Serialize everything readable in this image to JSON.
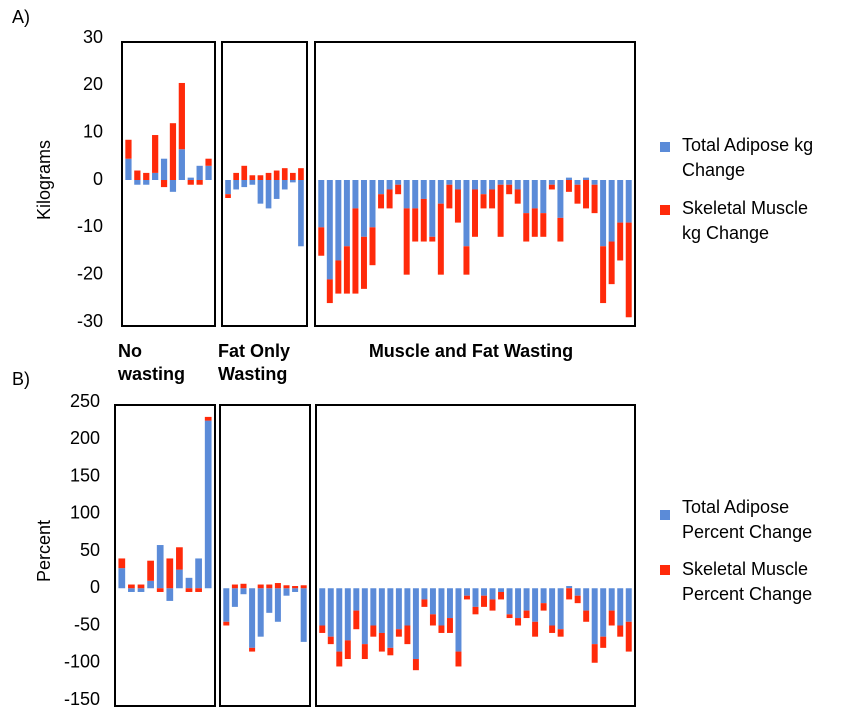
{
  "chart_data": [
    {
      "type": "bar",
      "stacked": true,
      "panel_label": "A)",
      "ylabel": "Kilograms",
      "ylim": [
        -30,
        30
      ],
      "yticks": [
        -30,
        -20,
        -10,
        0,
        10,
        20,
        30
      ],
      "series": [
        {
          "name": "Total Adipose kg Change",
          "color": "#5b8bd8"
        },
        {
          "name": "Skeletal Muscle kg Change",
          "color": "#ff2a0a"
        }
      ],
      "groups": [
        {
          "label": "No wasting",
          "series": [
            {
              "values": [
                4.5,
                -1,
                -1,
                1.5,
                4.5,
                -2.5,
                6.5,
                0.5,
                3,
                3
              ]
            },
            {
              "values": [
                4,
                2,
                1.5,
                8,
                -1.5,
                12,
                14,
                -1,
                -1,
                1.5
              ]
            }
          ]
        },
        {
          "label": "Fat Only Wasting",
          "series": [
            {
              "values": [
                -3,
                -2,
                -1.5,
                -1,
                -5,
                -6,
                -4,
                -2,
                -0.5,
                -14
              ]
            },
            {
              "values": [
                -0.8,
                1.5,
                3,
                1,
                1,
                1.5,
                2,
                2.5,
                1.5,
                2.5
              ]
            }
          ]
        },
        {
          "label": "Muscle and Fat Wasting",
          "series": [
            {
              "values": [
                -10,
                -21,
                -17,
                -14,
                -6,
                -12,
                -10,
                -3,
                -2,
                -1,
                -6,
                -6,
                -4,
                -12,
                -5,
                -1,
                -2,
                -14,
                -2,
                -3,
                -2,
                -1,
                -1,
                -2,
                -7,
                -6,
                -7,
                -1,
                -8,
                0.5,
                -1,
                0.5,
                -1,
                -14,
                -13,
                -9,
                -9
              ]
            },
            {
              "values": [
                -6,
                -5,
                -7,
                -10,
                -18,
                -11,
                -8,
                -3,
                -4,
                -2,
                -14,
                -7,
                -9,
                -1,
                -15,
                -5,
                -7,
                -6,
                -10,
                -3,
                -4,
                -11,
                -2,
                -3,
                -6,
                -6,
                -5,
                -1,
                -5,
                -2.5,
                -4,
                -6,
                -6,
                -12,
                -9,
                -8,
                -20
              ]
            }
          ]
        }
      ]
    },
    {
      "type": "bar",
      "stacked": true,
      "panel_label": "B)",
      "ylabel": "Percent",
      "ylim": [
        -150,
        250
      ],
      "yticks": [
        -150,
        -100,
        -50,
        0,
        50,
        100,
        150,
        200,
        250
      ],
      "series": [
        {
          "name": "Total Adipose Percent Change",
          "color": "#5b8bd8"
        },
        {
          "name": "Skeletal Muscle Percent Change",
          "color": "#ff2a0a"
        }
      ],
      "groups": [
        {
          "series": [
            {
              "values": [
                27,
                -5,
                -5,
                10,
                58,
                -17,
                25,
                14,
                40,
                225
              ]
            },
            {
              "values": [
                13,
                5,
                5,
                27,
                -5,
                40,
                30,
                -5,
                -5,
                5
              ]
            }
          ]
        },
        {
          "series": [
            {
              "values": [
                -45,
                -25,
                -8,
                -80,
                -65,
                -33,
                -45,
                -10,
                -5,
                -72
              ]
            },
            {
              "values": [
                -5,
                5,
                6,
                -5,
                5,
                5,
                7,
                4,
                3,
                4
              ]
            }
          ]
        },
        {
          "series": [
            {
              "values": [
                -50,
                -65,
                -85,
                -70,
                -30,
                -75,
                -50,
                -60,
                -80,
                -55,
                -50,
                -95,
                -15,
                -35,
                -50,
                -40,
                -85,
                -10,
                -25,
                -10,
                -15,
                -5,
                -35,
                -40,
                -30,
                -45,
                -20,
                -50,
                -55,
                3,
                -10,
                -30,
                -75,
                -65,
                -30,
                -50,
                -45
              ]
            },
            {
              "values": [
                -10,
                -10,
                -20,
                -25,
                -25,
                -20,
                -15,
                -25,
                -10,
                -10,
                -25,
                -15,
                -10,
                -15,
                -10,
                -20,
                -20,
                -5,
                -10,
                -15,
                -15,
                -10,
                -5,
                -10,
                -10,
                -20,
                -10,
                -10,
                -10,
                -15,
                -10,
                -15,
                -25,
                -15,
                -20,
                -15,
                -40
              ]
            }
          ]
        }
      ]
    }
  ]
}
